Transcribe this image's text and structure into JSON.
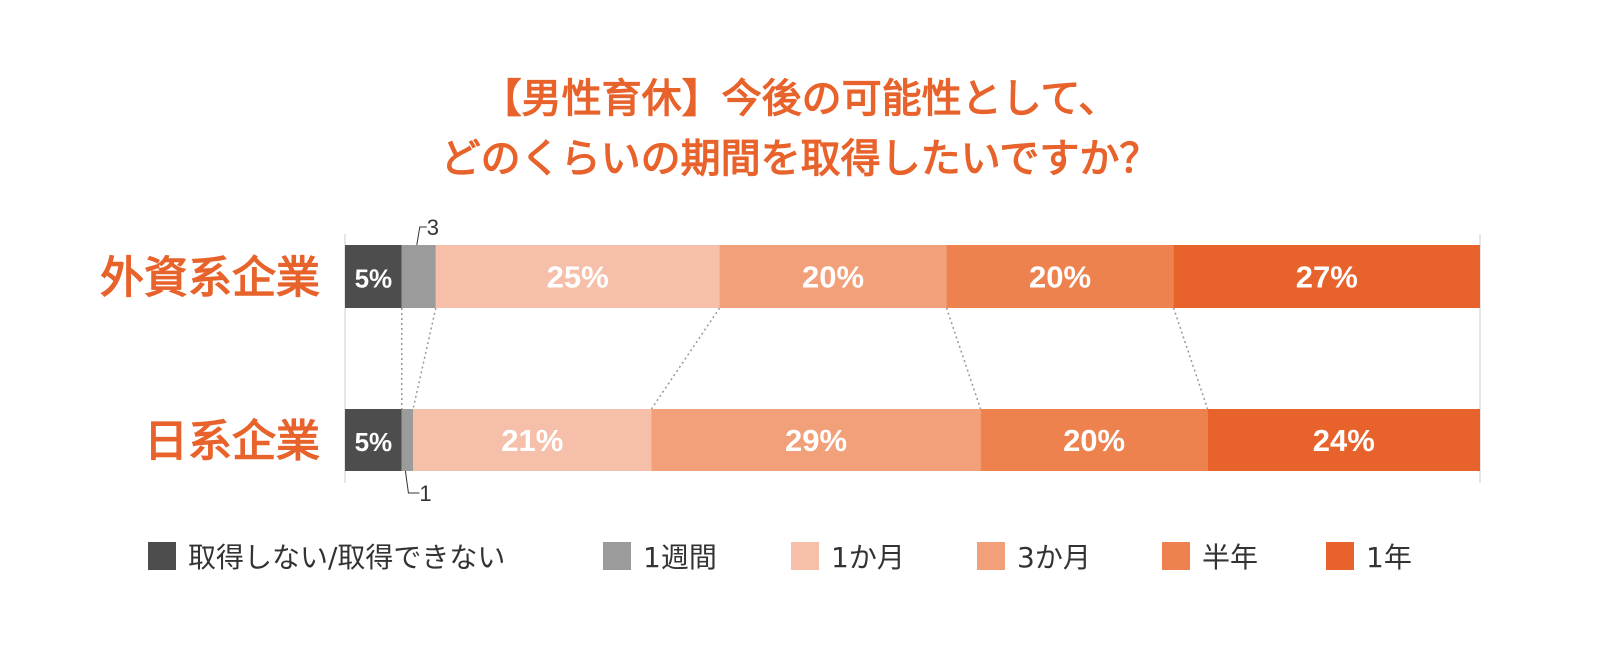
{
  "chart_data": {
    "type": "bar",
    "orientation": "horizontal",
    "stacked": true,
    "title": [
      "【男性育休】今後の可能性として、",
      "どのくらいの期間を取得したいですか？"
    ],
    "categories": [
      "外資系企業",
      "日系企業"
    ],
    "series": [
      {
        "name": "取得しない/取得できない",
        "color": "#4d4d4d",
        "values": [
          5,
          5
        ]
      },
      {
        "name": "1週間",
        "color": "#9b9b9b",
        "values": [
          3,
          1
        ]
      },
      {
        "name": "1か月",
        "color": "#f6bfa9",
        "values": [
          25,
          21
        ]
      },
      {
        "name": "3か月",
        "color": "#f2a07a",
        "values": [
          20,
          29
        ]
      },
      {
        "name": "半年",
        "color": "#ee824f",
        "values": [
          20,
          20
        ]
      },
      {
        "name": "1年",
        "color": "#e8622b",
        "values": [
          27,
          24
        ]
      }
    ],
    "data_labels": [
      [
        "5%",
        "3",
        "25%",
        "20%",
        "20%",
        "27%"
      ],
      [
        "5%",
        "1",
        "21%",
        "29%",
        "20%",
        "24%"
      ]
    ],
    "xlim": [
      0,
      100
    ],
    "grid": false,
    "legend_position": "bottom"
  },
  "colors": {
    "title": "#e8622b",
    "category_label": "#e8622b",
    "connector": "#999999"
  }
}
